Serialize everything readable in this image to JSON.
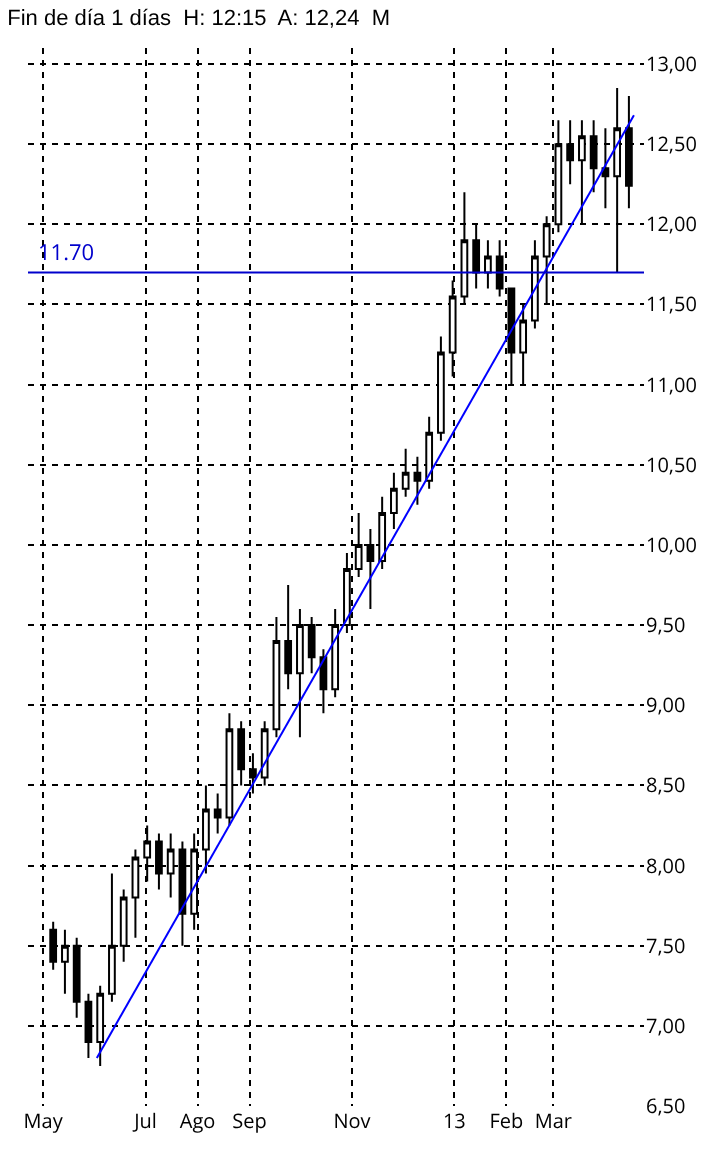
{
  "chart_data": {
    "type": "candlestick",
    "title": "Fin de día 1 días  H: 12:15  A: 12,24  M",
    "color": "#000000",
    "x": [
      "2012-05-07",
      "2012-05-14",
      "2012-05-21",
      "2012-05-28",
      "2012-06-04",
      "2012-06-11",
      "2012-06-18",
      "2012-06-25",
      "2012-07-02",
      "2012-07-09",
      "2012-07-16",
      "2012-07-23",
      "2012-07-30",
      "2012-08-06",
      "2012-08-13",
      "2012-08-20",
      "2012-08-27",
      "2012-09-03",
      "2012-09-10",
      "2012-09-17",
      "2012-09-24",
      "2012-10-01",
      "2012-10-08",
      "2012-10-15",
      "2012-10-22",
      "2012-10-29",
      "2012-11-05",
      "2012-11-12",
      "2012-11-19",
      "2012-11-26",
      "2012-12-03",
      "2012-12-10",
      "2012-12-17",
      "2012-12-24",
      "2012-12-31",
      "2013-01-07",
      "2013-01-14",
      "2013-01-21",
      "2013-01-28",
      "2013-02-04",
      "2013-02-11",
      "2013-02-18",
      "2013-02-25",
      "2013-03-04",
      "2013-03-11",
      "2013-03-18",
      "2013-03-25",
      "2013-04-01",
      "2013-04-08",
      "2013-04-15"
    ],
    "ohlc": [
      [
        7.6,
        7.65,
        7.35,
        7.4
      ],
      [
        7.4,
        7.6,
        7.2,
        7.5
      ],
      [
        7.5,
        7.55,
        7.05,
        7.15
      ],
      [
        7.15,
        7.2,
        6.8,
        6.9
      ],
      [
        6.9,
        7.25,
        6.75,
        7.2
      ],
      [
        7.2,
        7.95,
        7.15,
        7.5
      ],
      [
        7.5,
        7.85,
        7.4,
        7.8
      ],
      [
        7.8,
        8.1,
        7.55,
        8.05
      ],
      [
        8.05,
        8.25,
        7.9,
        8.15
      ],
      [
        8.15,
        8.2,
        7.85,
        7.95
      ],
      [
        7.95,
        8.2,
        7.8,
        8.1
      ],
      [
        8.1,
        8.15,
        7.5,
        7.7
      ],
      [
        7.7,
        8.2,
        7.6,
        8.1
      ],
      [
        8.1,
        8.5,
        7.95,
        8.35
      ],
      [
        8.35,
        8.45,
        8.2,
        8.3
      ],
      [
        8.3,
        8.95,
        8.25,
        8.85
      ],
      [
        8.85,
        8.9,
        8.5,
        8.6
      ],
      [
        8.6,
        8.7,
        8.45,
        8.55
      ],
      [
        8.55,
        8.9,
        8.5,
        8.85
      ],
      [
        8.85,
        9.55,
        8.8,
        9.4
      ],
      [
        9.4,
        9.75,
        9.1,
        9.2
      ],
      [
        9.2,
        9.6,
        8.8,
        9.5
      ],
      [
        9.5,
        9.55,
        9.2,
        9.3
      ],
      [
        9.3,
        9.35,
        8.95,
        9.1
      ],
      [
        9.1,
        9.6,
        9.05,
        9.5
      ],
      [
        9.5,
        9.95,
        9.45,
        9.85
      ],
      [
        9.85,
        10.2,
        9.8,
        10.0
      ],
      [
        10.0,
        10.1,
        9.6,
        9.9
      ],
      [
        9.9,
        10.3,
        9.85,
        10.2
      ],
      [
        10.2,
        10.45,
        10.1,
        10.35
      ],
      [
        10.35,
        10.6,
        10.3,
        10.45
      ],
      [
        10.45,
        10.55,
        10.25,
        10.4
      ],
      [
        10.4,
        10.8,
        10.35,
        10.7
      ],
      [
        10.7,
        11.3,
        10.65,
        11.2
      ],
      [
        11.2,
        11.65,
        11.05,
        11.55
      ],
      [
        11.55,
        12.2,
        11.5,
        11.9
      ],
      [
        11.9,
        12.0,
        11.6,
        11.7
      ],
      [
        11.7,
        11.9,
        11.6,
        11.8
      ],
      [
        11.8,
        11.9,
        11.55,
        11.6
      ],
      [
        11.6,
        11.6,
        11.0,
        11.2
      ],
      [
        11.2,
        11.5,
        11.0,
        11.4
      ],
      [
        11.4,
        11.9,
        11.35,
        11.8
      ],
      [
        11.8,
        12.05,
        11.5,
        12.0
      ],
      [
        12.0,
        12.65,
        11.95,
        12.5
      ],
      [
        12.5,
        12.65,
        12.25,
        12.4
      ],
      [
        12.4,
        12.65,
        12.0,
        12.55
      ],
      [
        12.55,
        12.65,
        12.2,
        12.35
      ],
      [
        12.35,
        12.6,
        12.1,
        12.3
      ],
      [
        12.3,
        12.85,
        11.7,
        12.6
      ],
      [
        12.6,
        12.8,
        12.1,
        12.24
      ]
    ],
    "series": [
      {
        "type": "line",
        "color": "#0000ff",
        "x": [
          "2012-06-02",
          "2013-04-18"
        ],
        "values": [
          6.8,
          12.68
        ]
      }
    ],
    "ref_lines": [
      {
        "axis": "y",
        "value": 11.7,
        "label": "11.70",
        "color": "#0000cc"
      }
    ],
    "xlim": [
      "2012-04-22",
      "2013-04-24"
    ],
    "xticks": [
      {
        "value": "2012-05-01",
        "label": "May"
      },
      {
        "value": "2012-07-01",
        "label": "Jul"
      },
      {
        "value": "2012-08-01",
        "label": "Ago"
      },
      {
        "value": "2012-09-01",
        "label": "Sep"
      },
      {
        "value": "2012-11-01",
        "label": "Nov"
      },
      {
        "value": "2013-01-01",
        "label": "13"
      },
      {
        "value": "2013-02-01",
        "label": "Feb"
      },
      {
        "value": "2013-03-01",
        "label": "Mar"
      }
    ],
    "ylim": [
      6.5,
      13.1
    ],
    "yticks": [
      {
        "value": 6.5,
        "label": "6,50"
      },
      {
        "value": 7,
        "label": "7,00"
      },
      {
        "value": 7.5,
        "label": "7,50"
      },
      {
        "value": 8,
        "label": "8,00"
      },
      {
        "value": 8.5,
        "label": "8,50"
      },
      {
        "value": 9,
        "label": "9,00"
      },
      {
        "value": 9.5,
        "label": "9,50"
      },
      {
        "value": 10,
        "label": "10,00"
      },
      {
        "value": 10.5,
        "label": "10,50"
      },
      {
        "value": 11,
        "label": "11,00"
      },
      {
        "value": 11.5,
        "label": "11,50"
      },
      {
        "value": 12,
        "label": "12,00"
      },
      {
        "value": 12.5,
        "label": "12,50"
      },
      {
        "value": 13,
        "label": "13,00"
      }
    ],
    "grid": true
  }
}
